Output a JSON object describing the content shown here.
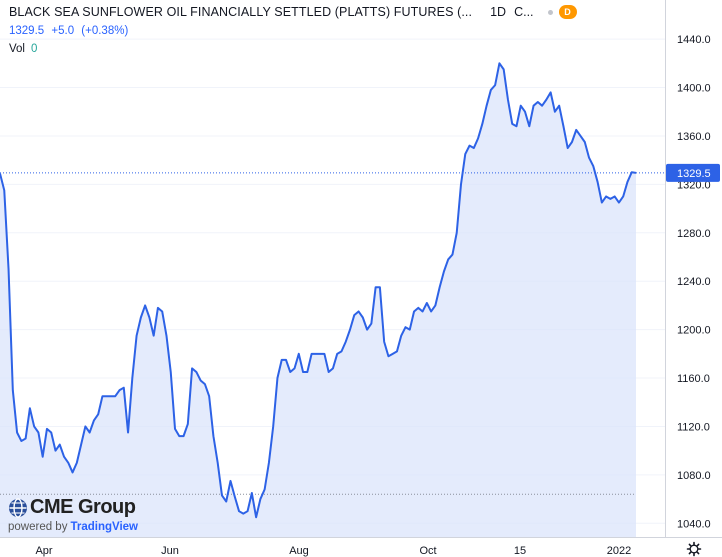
{
  "legend": {
    "title": "BLACK SEA SUNFLOWER OIL FINANCIALLY SETTLED (PLATTS) FUTURES (...",
    "interval": "1D",
    "exchange": "C...",
    "badge": "D",
    "last": "1329.5",
    "change": "+5.0",
    "change_pct": "(+0.38%)",
    "vol_label": "Vol",
    "vol_value": "0"
  },
  "watermark": {
    "brand": "CME Group",
    "powered_prefix": "powered by",
    "powered_brand": "TradingView"
  },
  "icons": {
    "settings": "gear-icon",
    "logo": "cme-globe-icon",
    "status": "status-dot-icon"
  },
  "colors": {
    "line": "#2d62e6",
    "area": "#dbe4fb",
    "price_tag": "#2d62e6",
    "badge": "#ff9800"
  },
  "chart_data": {
    "type": "area",
    "ylim": [
      1020,
      1450
    ],
    "y_ticks": [
      1040,
      1080,
      1120,
      1160,
      1200,
      1240,
      1280,
      1320,
      1360,
      1400,
      1440
    ],
    "y_tick_labels": [
      "1040.0",
      "1080.0",
      "1120.0",
      "1160.0",
      "1200.0",
      "1240.0",
      "1280.0",
      "1320.0",
      "1360.0",
      "1400.0",
      "1440.0"
    ],
    "x_tick_labels": [
      "Apr",
      "Jun",
      "Aug",
      "Oct",
      "15",
      "2022"
    ],
    "last_price": 1329.5,
    "last_price_label": "1329.5",
    "low_reference": 1064,
    "values": [
      1329,
      1315,
      1250,
      1150,
      1115,
      1108,
      1110,
      1135,
      1120,
      1115,
      1095,
      1118,
      1115,
      1100,
      1105,
      1095,
      1090,
      1082,
      1090,
      1105,
      1120,
      1115,
      1125,
      1130,
      1145,
      1145,
      1145,
      1145,
      1150,
      1152,
      1115,
      1160,
      1195,
      1210,
      1220,
      1210,
      1195,
      1218,
      1215,
      1195,
      1165,
      1118,
      1112,
      1112,
      1122,
      1168,
      1165,
      1158,
      1155,
      1145,
      1112,
      1090,
      1063,
      1058,
      1075,
      1062,
      1050,
      1048,
      1050,
      1065,
      1045,
      1060,
      1068,
      1090,
      1120,
      1160,
      1175,
      1175,
      1165,
      1168,
      1180,
      1165,
      1165,
      1180,
      1180,
      1180,
      1180,
      1165,
      1168,
      1180,
      1182,
      1190,
      1200,
      1212,
      1215,
      1210,
      1200,
      1205,
      1235,
      1235,
      1190,
      1178,
      1180,
      1182,
      1195,
      1202,
      1200,
      1215,
      1218,
      1215,
      1222,
      1215,
      1220,
      1235,
      1248,
      1258,
      1262,
      1280,
      1320,
      1345,
      1352,
      1350,
      1358,
      1370,
      1385,
      1398,
      1402,
      1420,
      1415,
      1390,
      1370,
      1368,
      1385,
      1380,
      1368,
      1385,
      1388,
      1385,
      1390,
      1396,
      1380,
      1385,
      1368,
      1350,
      1355,
      1365,
      1360,
      1355,
      1342,
      1335,
      1322,
      1305,
      1310,
      1308,
      1310,
      1305,
      1310,
      1322,
      1330,
      1329.5
    ]
  }
}
